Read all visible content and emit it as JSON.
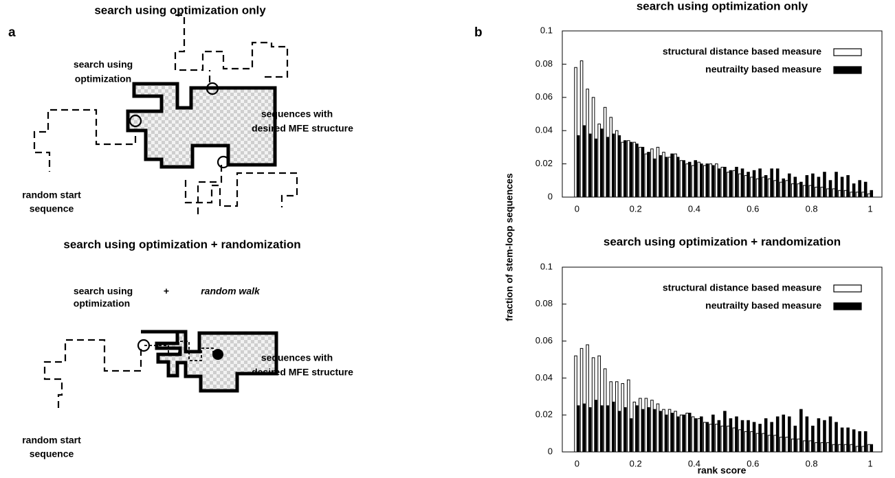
{
  "panel_a": {
    "label": "a",
    "title": "search using optimization only",
    "top": {
      "search_label": [
        "search using",
        "optimization"
      ],
      "target_label": [
        "sequences with",
        "desired MFE structure"
      ],
      "start_label": [
        "random start",
        "sequence"
      ]
    },
    "bottom_title": "search using optimization + randomization",
    "bottom": {
      "search_label": [
        "search using",
        "optimization"
      ],
      "plus": "+",
      "walk_label": "random walk",
      "target_label": [
        "sequences with",
        "desired MFE structure"
      ],
      "start_label": [
        "random start",
        "sequence"
      ]
    }
  },
  "panel_b": {
    "label": "b",
    "ylabel": "fraction of stem-loop sequences",
    "xlabel": "rank score"
  },
  "chart_data": [
    {
      "type": "bar",
      "title": "search using optimization only",
      "legend": "upper right",
      "xlim": [
        -0.05,
        1.04
      ],
      "xticks": [
        0,
        0.2,
        0.4,
        0.6,
        0.8,
        1
      ],
      "ylim": [
        0,
        0.1
      ],
      "yticks": [
        0,
        0.02,
        0.04,
        0.06,
        0.08,
        0.1
      ],
      "x": [
        0,
        0.02,
        0.04,
        0.06,
        0.08,
        0.1,
        0.12,
        0.14,
        0.16,
        0.18,
        0.2,
        0.22,
        0.24,
        0.26,
        0.28,
        0.3,
        0.32,
        0.34,
        0.36,
        0.38,
        0.4,
        0.42,
        0.44,
        0.46,
        0.48,
        0.5,
        0.52,
        0.54,
        0.56,
        0.58,
        0.6,
        0.62,
        0.64,
        0.66,
        0.68,
        0.7,
        0.72,
        0.74,
        0.76,
        0.78,
        0.8,
        0.82,
        0.84,
        0.86,
        0.88,
        0.9,
        0.92,
        0.94,
        0.96,
        0.98,
        1
      ],
      "series": [
        {
          "name": "structural distance based measure",
          "color": "#ffffff",
          "values": [
            0.078,
            0.082,
            0.065,
            0.06,
            0.044,
            0.054,
            0.048,
            0.04,
            0.033,
            0.034,
            0.033,
            0.03,
            0.026,
            0.029,
            0.03,
            0.027,
            0.024,
            0.026,
            0.022,
            0.02,
            0.019,
            0.021,
            0.019,
            0.02,
            0.02,
            0.018,
            0.015,
            0.016,
            0.014,
            0.013,
            0.012,
            0.011,
            0.012,
            0.011,
            0.01,
            0.009,
            0.01,
            0.008,
            0.008,
            0.007,
            0.007,
            0.006,
            0.006,
            0.005,
            0.005,
            0.004,
            0.004,
            0.003,
            0.003,
            0.003,
            0.002
          ]
        },
        {
          "name": "neutrailty based measure",
          "color": "#000000",
          "values": [
            0.037,
            0.043,
            0.038,
            0.035,
            0.041,
            0.036,
            0.038,
            0.037,
            0.034,
            0.033,
            0.032,
            0.03,
            0.027,
            0.023,
            0.025,
            0.024,
            0.026,
            0.024,
            0.022,
            0.021,
            0.022,
            0.02,
            0.02,
            0.019,
            0.017,
            0.018,
            0.016,
            0.018,
            0.017,
            0.015,
            0.016,
            0.017,
            0.013,
            0.017,
            0.017,
            0.011,
            0.014,
            0.012,
            0.009,
            0.013,
            0.014,
            0.012,
            0.015,
            0.01,
            0.015,
            0.012,
            0.013,
            0.008,
            0.01,
            0.009,
            0.004
          ]
        }
      ]
    },
    {
      "type": "bar",
      "title": "search using optimization + randomization",
      "legend": "upper right",
      "xlim": [
        -0.05,
        1.04
      ],
      "xticks": [
        0,
        0.2,
        0.4,
        0.6,
        0.8,
        1
      ],
      "ylim": [
        0,
        0.1
      ],
      "yticks": [
        0,
        0.02,
        0.04,
        0.06,
        0.08,
        0.1
      ],
      "x": [
        0,
        0.02,
        0.04,
        0.06,
        0.08,
        0.1,
        0.12,
        0.14,
        0.16,
        0.18,
        0.2,
        0.22,
        0.24,
        0.26,
        0.28,
        0.3,
        0.32,
        0.34,
        0.36,
        0.38,
        0.4,
        0.42,
        0.44,
        0.46,
        0.48,
        0.5,
        0.52,
        0.54,
        0.56,
        0.58,
        0.6,
        0.62,
        0.64,
        0.66,
        0.68,
        0.7,
        0.72,
        0.74,
        0.76,
        0.78,
        0.8,
        0.82,
        0.84,
        0.86,
        0.88,
        0.9,
        0.92,
        0.94,
        0.96,
        0.98,
        1
      ],
      "series": [
        {
          "name": "structural distance based measure",
          "color": "#ffffff",
          "values": [
            0.052,
            0.056,
            0.058,
            0.051,
            0.052,
            0.045,
            0.038,
            0.038,
            0.037,
            0.039,
            0.027,
            0.029,
            0.029,
            0.028,
            0.026,
            0.023,
            0.023,
            0.022,
            0.02,
            0.021,
            0.019,
            0.018,
            0.016,
            0.015,
            0.015,
            0.014,
            0.014,
            0.013,
            0.012,
            0.011,
            0.011,
            0.01,
            0.01,
            0.009,
            0.009,
            0.008,
            0.008,
            0.007,
            0.007,
            0.006,
            0.006,
            0.005,
            0.005,
            0.005,
            0.004,
            0.004,
            0.004,
            0.004,
            0.003,
            0.003,
            0.004
          ]
        },
        {
          "name": "neutrailty based measure",
          "color": "#000000",
          "values": [
            0.025,
            0.026,
            0.024,
            0.028,
            0.025,
            0.025,
            0.027,
            0.022,
            0.024,
            0.018,
            0.025,
            0.023,
            0.024,
            0.023,
            0.022,
            0.02,
            0.021,
            0.019,
            0.02,
            0.021,
            0.018,
            0.019,
            0.016,
            0.02,
            0.017,
            0.022,
            0.018,
            0.019,
            0.017,
            0.017,
            0.016,
            0.015,
            0.018,
            0.016,
            0.019,
            0.02,
            0.019,
            0.014,
            0.023,
            0.019,
            0.014,
            0.018,
            0.017,
            0.019,
            0.016,
            0.013,
            0.013,
            0.012,
            0.011,
            0.011,
            0.004
          ]
        }
      ]
    }
  ]
}
